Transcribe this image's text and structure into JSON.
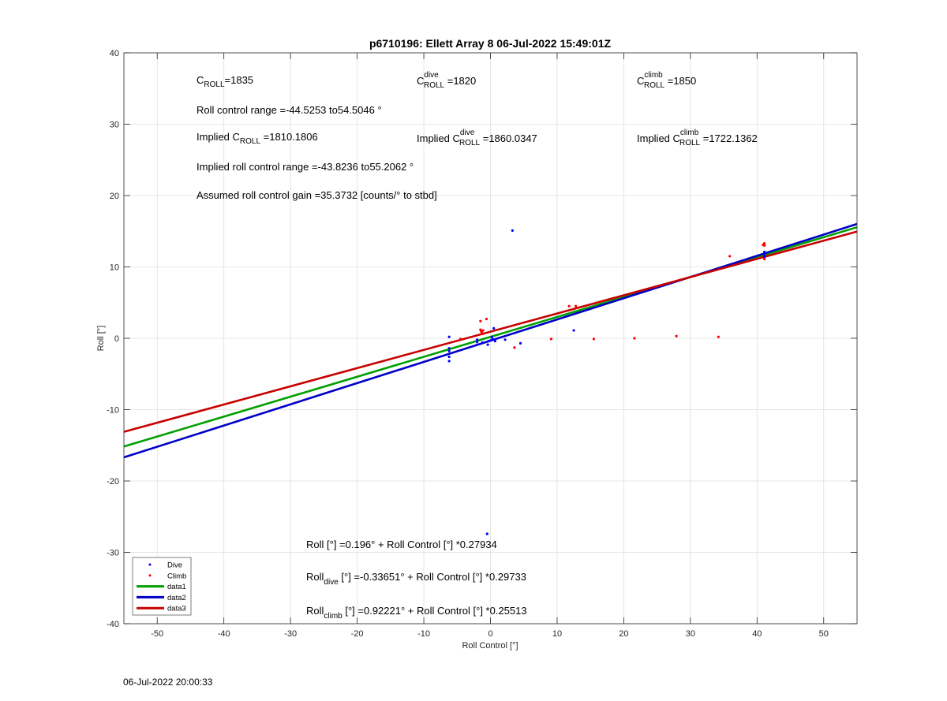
{
  "chart_data": {
    "type": "scatter",
    "title": "p6710196: Ellett Array 8 06-Jul-2022 15:49:01Z",
    "xlabel": "Roll Control [°]",
    "ylabel": "Roll [°]",
    "xlim": [
      -55,
      55
    ],
    "ylim": [
      -40,
      40
    ],
    "xticks": [
      -50,
      -40,
      -30,
      -20,
      -10,
      0,
      10,
      20,
      30,
      40,
      50
    ],
    "yticks": [
      -40,
      -30,
      -20,
      -10,
      0,
      10,
      20,
      30,
      40
    ],
    "grid": true,
    "legend_placement": "bottom-left",
    "series": [
      {
        "name": "Dive",
        "kind": "points",
        "color": "#0000ff",
        "points": [
          [
            -6.2,
            0.2
          ],
          [
            -6.2,
            -1.4
          ],
          [
            -6.2,
            -1.8
          ],
          [
            -6.2,
            -2.6
          ],
          [
            -6.2,
            -3.2
          ],
          [
            -2,
            -0.9
          ],
          [
            -2,
            -0.5
          ],
          [
            -2,
            -0.2
          ],
          [
            -1.2,
            -0.6
          ],
          [
            -0.4,
            -0.9
          ],
          [
            -0.3,
            -0.4
          ],
          [
            0,
            -0.3
          ],
          [
            0.2,
            0.2
          ],
          [
            0.3,
            -0.1
          ],
          [
            0.5,
            -0.2
          ],
          [
            0.7,
            -0.4
          ],
          [
            0.5,
            1.4
          ],
          [
            3.3,
            15.1
          ],
          [
            4.5,
            -0.7
          ],
          [
            2.2,
            -0.2
          ],
          [
            12.5,
            1.1
          ],
          [
            41.1,
            11.4
          ],
          [
            41.1,
            11.7
          ],
          [
            41.1,
            12.1
          ],
          [
            -0.5,
            -27.4
          ]
        ]
      },
      {
        "name": "Climb",
        "kind": "points",
        "color": "#ff0000",
        "points": [
          [
            -1.5,
            2.4
          ],
          [
            -1.5,
            1.2
          ],
          [
            -1.4,
            1.0
          ],
          [
            -1.3,
            0.8
          ],
          [
            -1.2,
            0.6
          ],
          [
            -1.1,
            1.1
          ],
          [
            -0.6,
            2.7
          ],
          [
            -4.5,
            -0.1
          ],
          [
            3.6,
            -1.3
          ],
          [
            9.1,
            -0.1
          ],
          [
            11.8,
            4.5
          ],
          [
            12.8,
            4.5
          ],
          [
            15.5,
            -0.1
          ],
          [
            21.6,
            0
          ],
          [
            27.9,
            0.3
          ],
          [
            34.2,
            0.2
          ],
          [
            35.9,
            11.5
          ],
          [
            41.1,
            13.3
          ],
          [
            41.1,
            13.0
          ],
          [
            40.9,
            13.1
          ],
          [
            41.1,
            11.1
          ]
        ]
      },
      {
        "name": "data1",
        "kind": "line",
        "color": "#00a000",
        "slope": 0.27934,
        "intercept": 0.196
      },
      {
        "name": "data2",
        "kind": "line",
        "color": "#0000c8",
        "slope": 0.29733,
        "intercept": -0.33651
      },
      {
        "name": "data3",
        "kind": "line",
        "color": "#c80000",
        "slope": 0.25513,
        "intercept": 0.92221
      }
    ]
  },
  "annotations": {
    "c_roll": {
      "base": "C",
      "sub": "ROLL",
      "rest": "=1835"
    },
    "c_roll_dive": {
      "base": "C",
      "sup": "dive",
      "sub": "ROLL",
      "rest": " =1820"
    },
    "c_roll_climb": {
      "base": "C",
      "sup": "climb",
      "sub": "ROLL",
      "rest": " =1850"
    },
    "range": "Roll control range =-44.5253 to54.5046 °",
    "implied_c_roll": {
      "pre": "Implied C",
      "sub": "ROLL",
      "rest": " =1810.1806"
    },
    "implied_c_roll_dive": {
      "pre": "Implied C",
      "sup": "dive",
      "sub": "ROLL",
      "rest": " =1860.0347"
    },
    "implied_c_roll_climb": {
      "pre": "Implied C",
      "sup": "climb",
      "sub": "ROLL",
      "rest": " =1722.1362"
    },
    "implied_range": "Implied roll control range =-43.8236 to55.2062 °",
    "gain": "Assumed roll control gain =35.3732 [counts/° to stbd]",
    "fit_all": "Roll [°] =0.196° + Roll Control [°] *0.27934",
    "fit_dive": {
      "pre": "Roll",
      "sub": "dive",
      "rest": " [°] =-0.33651° + Roll Control [°] *0.29733"
    },
    "fit_climb": {
      "pre": "Roll",
      "sub": "climb",
      "rest": " [°] =0.92221° + Roll Control [°] *0.25513"
    }
  },
  "footer_timestamp": "06-Jul-2022 20:00:33"
}
